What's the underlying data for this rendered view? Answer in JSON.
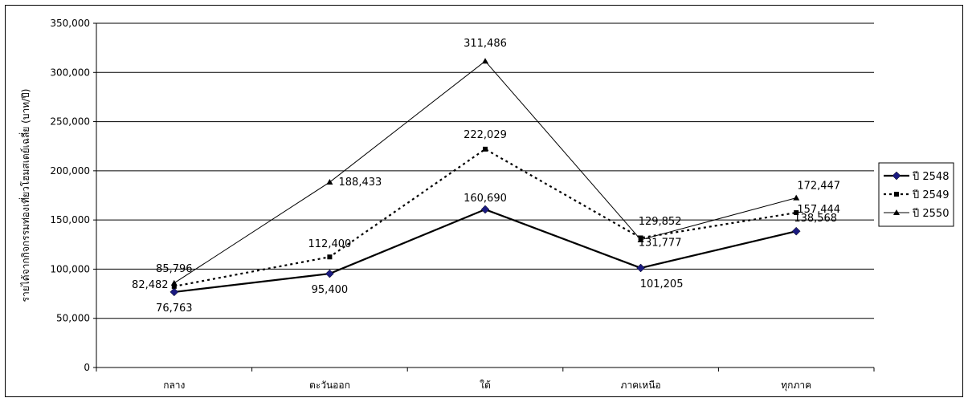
{
  "chart_data": {
    "type": "line",
    "title": "",
    "xlabel": "",
    "ylabel": "รายได้จากกิจกรรมท่องเที่ยวโฮมสเตย์เฉลี่ย (บาท/ปี)",
    "categories": [
      "กลาง",
      "ตะวันออก",
      "ใต้",
      "ภาคเหนือ",
      "ทุกภาค"
    ],
    "ylim": [
      0,
      350000
    ],
    "yticks": [
      0,
      50000,
      100000,
      150000,
      200000,
      250000,
      300000,
      350000
    ],
    "ytick_labels": [
      "0",
      "50,000",
      "100,000",
      "150,000",
      "200,000",
      "250,000",
      "300,000",
      "350,000"
    ],
    "grid": true,
    "legend_position": "right",
    "series": [
      {
        "name": "ปี 2548",
        "values": [
          76763,
          95400,
          160690,
          101205,
          138568
        ],
        "labels": [
          "76,763",
          "95,400",
          "160,690",
          "101,205",
          "138,568"
        ],
        "color": "#000000",
        "marker_color": "#1a1a80",
        "marker": "diamond",
        "line_style": "solid-thick"
      },
      {
        "name": "ปี 2549",
        "values": [
          82482,
          112400,
          222029,
          131777,
          157444
        ],
        "labels": [
          "82,482",
          "112,400",
          "222,029",
          "131,777",
          "157,444"
        ],
        "color": "#000000",
        "marker": "square",
        "line_style": "dotted"
      },
      {
        "name": "ปี 2550",
        "values": [
          85796,
          188433,
          311486,
          129852,
          172447
        ],
        "labels": [
          "85,796",
          "188,433",
          "311,486",
          "129,852",
          "172,447"
        ],
        "color": "#000000",
        "marker": "triangle",
        "line_style": "solid-thin"
      }
    ]
  }
}
